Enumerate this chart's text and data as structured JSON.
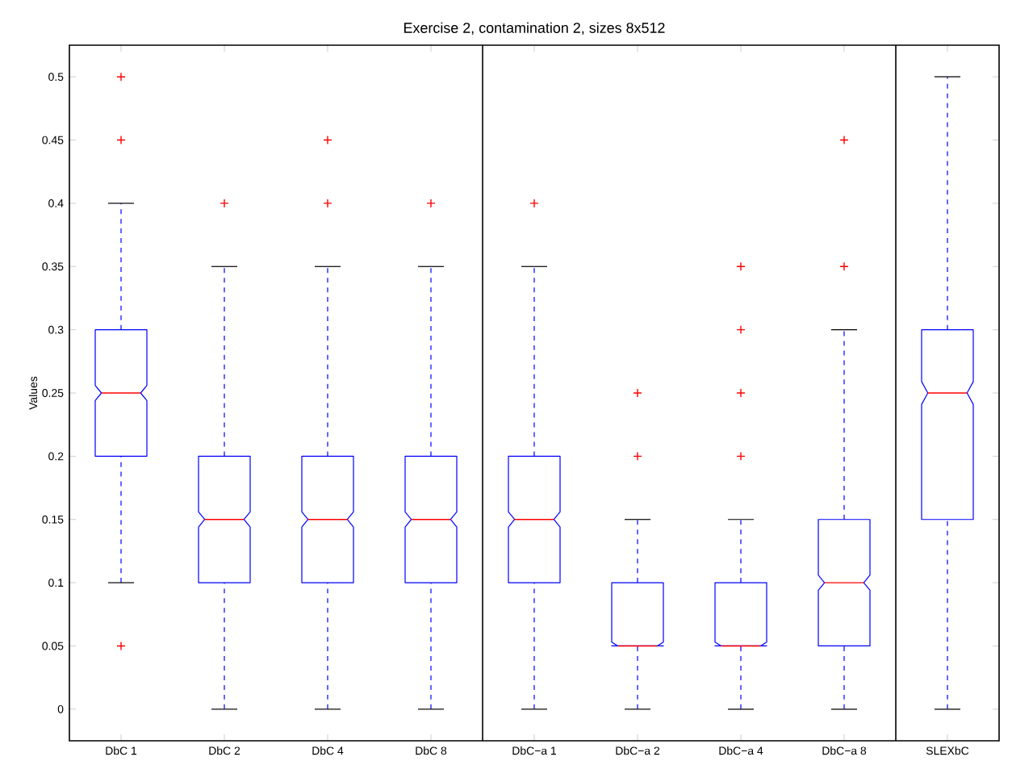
{
  "chart_data": {
    "type": "box",
    "title": "Exercise 2, contamination 2, sizes 8x512",
    "ylabel": "Values",
    "categories": [
      "DbC 1",
      "DbC 2",
      "DbC 4",
      "DbC 8",
      "DbC−a 1",
      "DbC−a 2",
      "DbC−a 4",
      "DbC−a 8",
      "SLEXbC"
    ],
    "color": "#0000ff",
    "boxes": [
      {
        "low": 0.1,
        "q1": 0.2,
        "median": 0.25,
        "q3": 0.3,
        "high": 0.4,
        "outliers": [
          0.05,
          0.45,
          0.5
        ]
      },
      {
        "low": 0,
        "q1": 0.1,
        "median": 0.15,
        "q3": 0.2,
        "high": 0.35,
        "outliers": [
          0.4
        ]
      },
      {
        "low": 0,
        "q1": 0.1,
        "median": 0.15,
        "q3": 0.2,
        "high": 0.35,
        "outliers": [
          0.4,
          0.45
        ]
      },
      {
        "low": 0,
        "q1": 0.1,
        "median": 0.15,
        "q3": 0.2,
        "high": 0.35,
        "outliers": [
          0.4
        ]
      },
      {
        "low": 0,
        "q1": 0.1,
        "median": 0.15,
        "q3": 0.2,
        "high": 0.35,
        "outliers": [
          0.4
        ]
      },
      {
        "low": 0,
        "q1": 0.05,
        "median": 0.05,
        "q3": 0.1,
        "high": 0.15,
        "outliers": [
          0.2,
          0.25
        ]
      },
      {
        "low": 0,
        "q1": 0.05,
        "median": 0.05,
        "q3": 0.1,
        "high": 0.15,
        "outliers": [
          0.2,
          0.25,
          0.3,
          0.35
        ]
      },
      {
        "low": 0,
        "q1": 0.05,
        "median": 0.1,
        "q3": 0.15,
        "high": 0.3,
        "outliers": [
          0.35,
          0.45
        ]
      },
      {
        "low": 0,
        "q1": 0.15,
        "median": 0.25,
        "q3": 0.3,
        "high": 0.5
      }
    ],
    "ylim": [
      -0.025,
      0.525
    ],
    "yticks": [
      0,
      0.05,
      0.1,
      0.15,
      0.2,
      0.25,
      0.3,
      0.35,
      0.4,
      0.45,
      0.5
    ],
    "grid": false
  }
}
